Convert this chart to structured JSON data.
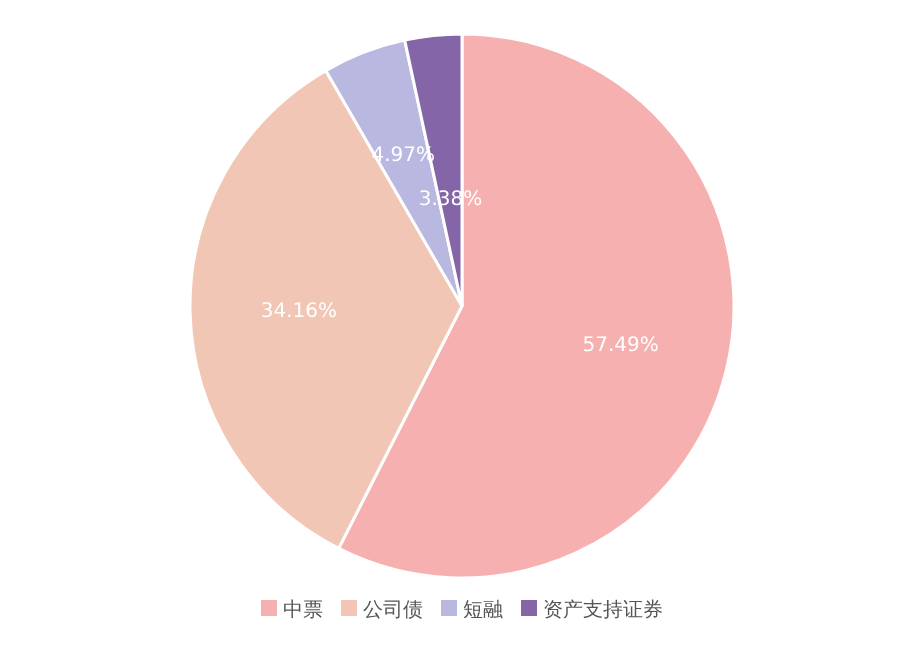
{
  "chart_data": {
    "type": "pie",
    "categories": [
      "中票",
      "公司债",
      "短融",
      "资产支持证券"
    ],
    "values": [
      57.49,
      34.16,
      4.97,
      3.38
    ],
    "value_labels": [
      "57.49%",
      "34.16%",
      "4.97%",
      "3.38%"
    ],
    "colors": [
      "#f7b0b0",
      "#f2c6b4",
      "#b8b8e0",
      "#8466a8"
    ],
    "legend": "bottom"
  }
}
